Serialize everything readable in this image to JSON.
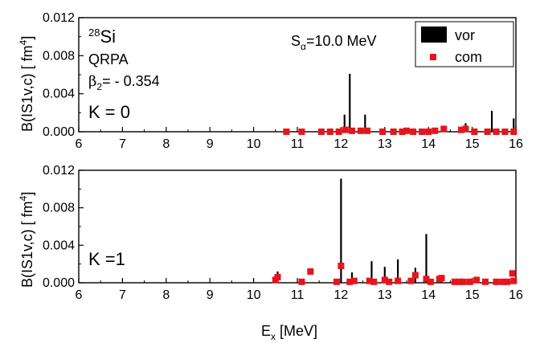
{
  "chart_data": [
    {
      "type": "bar",
      "panel": "top",
      "ylabel_main": "B(IS1v,c)  [ fm",
      "ylabel_sup": "4",
      "ylabel_end": "]",
      "xlim": [
        6,
        16
      ],
      "ylim": [
        0,
        0.012
      ],
      "x_ticks": [
        "6",
        "7",
        "8",
        "9",
        "10",
        "11",
        "12",
        "13",
        "14",
        "15",
        "16"
      ],
      "y_ticks": [
        "0.000",
        "0.004",
        "0.008",
        "0.012"
      ],
      "annotations": {
        "nucleus_sup": "28",
        "nucleus": "Si",
        "method": "QRPA",
        "beta_main": "β",
        "beta_sub": "2",
        "beta_val": "= - 0.354",
        "k_label": "K = 0",
        "s_main": "S",
        "s_sub": "α",
        "s_val": "=10.0 MeV"
      },
      "legend": {
        "placement": "top-right",
        "entries": [
          "vor",
          "com"
        ]
      },
      "series": [
        {
          "name": "vor",
          "style": "stick",
          "color": "#000000",
          "x": [
            12.08,
            12.2,
            12.55,
            13.45,
            14.85,
            15.45,
            15.95
          ],
          "values": [
            0.0018,
            0.0061,
            0.0018,
            0.0004,
            0.0009,
            0.0022,
            0.0014
          ]
        },
        {
          "name": "com",
          "style": "marker",
          "color": "#e8141b",
          "x": [
            10.75,
            11.1,
            11.55,
            11.75,
            11.95,
            12.1,
            12.25,
            12.45,
            12.6,
            12.95,
            13.2,
            13.4,
            13.5,
            13.65,
            13.85,
            14.0,
            14.15,
            14.35,
            14.75,
            14.85,
            15.05,
            15.35,
            15.55,
            15.75,
            15.95
          ],
          "values": [
            0.0,
            0.0,
            0.0,
            0.0,
            0.0,
            0.0002,
            0.0001,
            0.0001,
            0.0001,
            0.0,
            0.0,
            0.0,
            0.0001,
            0.0,
            0.0,
            0.0,
            0.0001,
            0.0003,
            0.0002,
            0.0003,
            0.0,
            0.0,
            0.0,
            0.0,
            0.0
          ]
        }
      ]
    },
    {
      "type": "bar",
      "panel": "bottom",
      "ylabel_main": "B(IS1v,c)  [ fm",
      "ylabel_sup": "4",
      "ylabel_end": "]",
      "xlabel_main": "E",
      "xlabel_sub": "x",
      "xlabel_end": " [MeV]",
      "xlim": [
        6,
        16
      ],
      "ylim": [
        0,
        0.012
      ],
      "x_ticks": [
        "6",
        "7",
        "8",
        "9",
        "10",
        "11",
        "12",
        "13",
        "14",
        "15",
        "16"
      ],
      "y_ticks": [
        "0.000",
        "0.004",
        "0.008",
        "0.012"
      ],
      "annotations": {
        "k_label": "K =1"
      },
      "series": [
        {
          "name": "vor",
          "style": "stick",
          "color": "#000000",
          "x": [
            10.55,
            12.0,
            12.25,
            12.7,
            13.0,
            13.3,
            13.7,
            13.95,
            14.3
          ],
          "values": [
            0.0012,
            0.0111,
            0.0011,
            0.0023,
            0.0017,
            0.0025,
            0.0016,
            0.0052,
            0.0006
          ]
        },
        {
          "name": "com",
          "style": "marker",
          "color": "#e8141b",
          "x": [
            10.5,
            10.55,
            11.1,
            11.3,
            11.9,
            12.0,
            12.2,
            12.3,
            12.65,
            12.75,
            13.0,
            13.1,
            13.3,
            13.6,
            13.7,
            13.95,
            14.05,
            14.25,
            14.3,
            14.6,
            14.7,
            14.8,
            14.95,
            15.1,
            15.3,
            15.55,
            15.7,
            15.8,
            15.92,
            15.95
          ],
          "values": [
            0.0003,
            0.0006,
            0.0001,
            0.0012,
            0.0001,
            0.0018,
            0.0001,
            0.0002,
            0.0002,
            0.0001,
            0.0003,
            0.0001,
            0.0002,
            0.0002,
            0.0008,
            0.0004,
            0.0001,
            0.0004,
            0.0005,
            0.0001,
            0.0001,
            0.0001,
            0.0001,
            0.0003,
            0.0001,
            0.0001,
            0.0001,
            0.0001,
            0.001,
            0.0002
          ]
        }
      ]
    }
  ]
}
